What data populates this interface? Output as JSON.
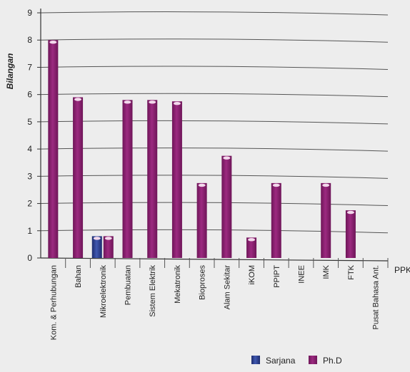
{
  "chart_data": {
    "type": "bar",
    "ylabel": "Bilangan",
    "xlabel": "PPK",
    "ylim": [
      0,
      9
    ],
    "y_ticks": [
      "0",
      "1",
      "2",
      "3",
      "4",
      "5",
      "6",
      "7",
      "8",
      "9"
    ],
    "grid": true,
    "legend_position": "bottom-right",
    "categories": [
      "Kom. & Perhubungan",
      "Bahan",
      "Mikroelektronik",
      "Pembuatan",
      "Sistem Elektrik",
      "Mekatronik",
      "Bioproses",
      "Alam Sekitar",
      "iKOM",
      "PPIPT",
      "INEE",
      "IMK",
      "FTK",
      "Pusat Bahasa Ant."
    ],
    "series": [
      {
        "name": "Sarjana",
        "color": "#2b3f8f",
        "values": [
          0,
          0,
          0.8,
          0,
          0,
          0,
          0,
          0,
          0,
          0,
          0,
          0,
          0,
          0
        ]
      },
      {
        "name": "Ph.D",
        "color": "#8b1f6e",
        "values": [
          8,
          5.9,
          0.8,
          5.8,
          5.8,
          5.75,
          2.75,
          3.75,
          0.75,
          2.75,
          0,
          2.75,
          1.75,
          0
        ]
      }
    ]
  }
}
